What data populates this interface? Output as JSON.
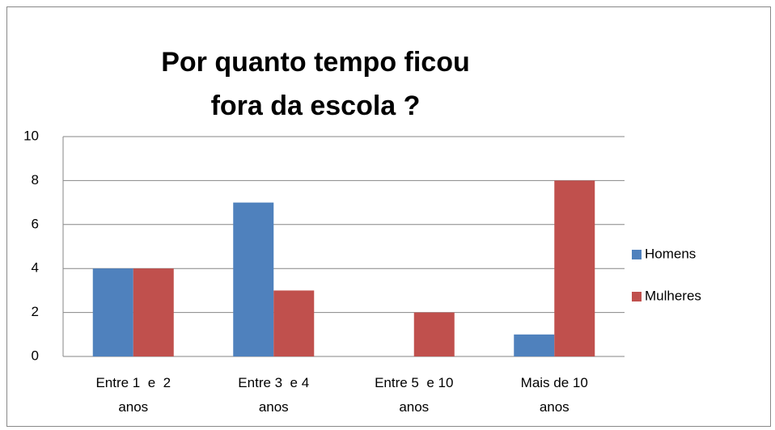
{
  "chart_data": {
    "type": "bar",
    "title": "Por quanto tempo ficou fora da escola ?",
    "categories": [
      "Entre 1  e  2 anos",
      "Entre 3  e 4 anos",
      "Entre 5  e 10 anos",
      "Mais de 10 anos"
    ],
    "series": [
      {
        "name": "Homens",
        "color": "#4f81bd",
        "values": [
          4,
          7,
          0,
          1
        ]
      },
      {
        "name": "Mulheres",
        "color": "#c0504d",
        "values": [
          4,
          3,
          2,
          8
        ]
      }
    ],
    "ylim": [
      0,
      10
    ],
    "yticks": [
      0,
      2,
      4,
      6,
      8,
      10
    ],
    "grid": true,
    "legend": "right"
  }
}
